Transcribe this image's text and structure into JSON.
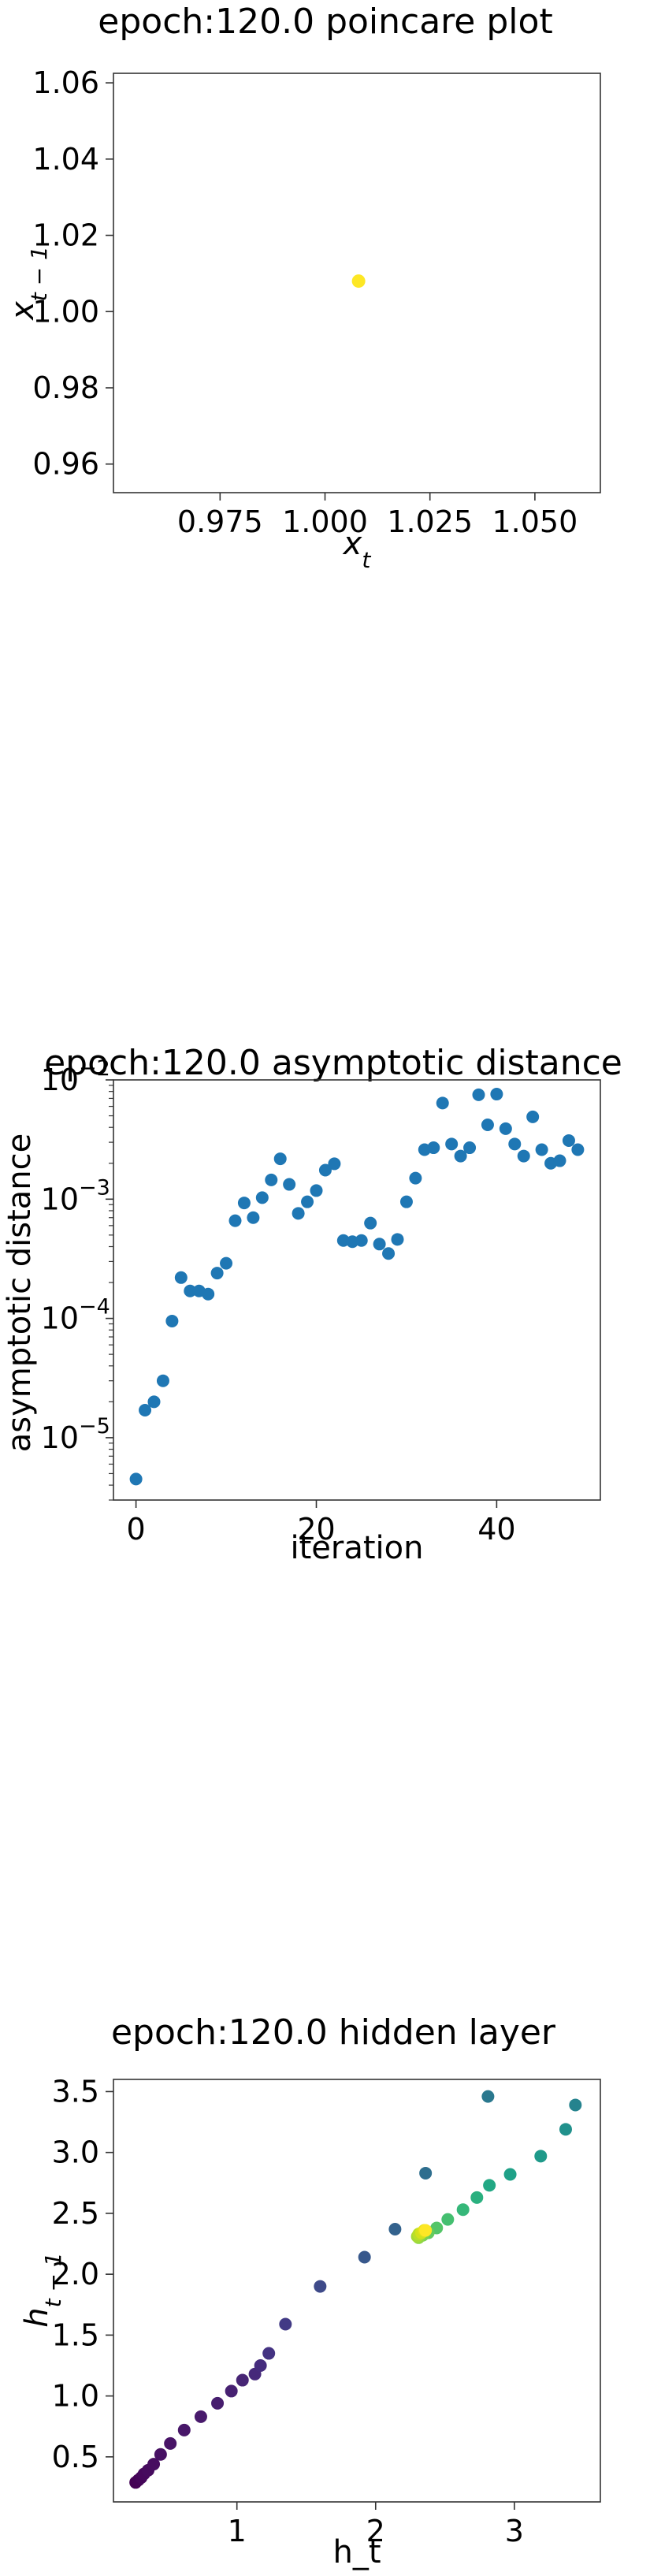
{
  "chart_data": [
    {
      "type": "scatter",
      "title": "epoch:120.0 poincare plot",
      "xlabel": "x_t",
      "ylabel": "x_{t-1}",
      "xlim": [
        0.9496,
        1.0656
      ],
      "ylim": [
        0.9525,
        1.0625
      ],
      "xticks": [
        0.975,
        1.0,
        1.025,
        1.05
      ],
      "xtick_labels": [
        "0.975",
        "1.000",
        "1.025",
        "1.050"
      ],
      "yticks": [
        0.96,
        0.98,
        1.0,
        1.02,
        1.04,
        1.06
      ],
      "ytick_labels": [
        "0.96",
        "0.98",
        "1.00",
        "1.02",
        "1.04",
        "1.06"
      ],
      "points": [
        {
          "x": 1.008,
          "y": 1.008
        }
      ],
      "point_color": "#fde725"
    },
    {
      "type": "scatter",
      "title": "epoch:120.0 asymptotic distance",
      "xlabel": "iteration",
      "ylabel": "asymptotic distance",
      "yscale": "log",
      "xlim": [
        -2.5,
        51.5
      ],
      "ylim": [
        3e-06,
        0.01
      ],
      "xticks": [
        0,
        20,
        40
      ],
      "xtick_labels": [
        "0",
        "20",
        "40"
      ],
      "yticks": [
        1e-05,
        0.0001,
        0.001,
        0.01
      ],
      "ytick_labels": [
        "10",
        "10",
        "10",
        "10"
      ],
      "ytick_exponents": [
        "−5",
        "−4",
        "−3",
        "−2"
      ],
      "point_color": "#1f77b4",
      "x": [
        0,
        1,
        2,
        3,
        4,
        5,
        6,
        7,
        8,
        9,
        10,
        11,
        12,
        13,
        14,
        15,
        16,
        17,
        18,
        19,
        20,
        21,
        22,
        23,
        24,
        25,
        26,
        27,
        28,
        29,
        30,
        31,
        32,
        33,
        34,
        35,
        36,
        37,
        38,
        39,
        40,
        41,
        42,
        43,
        44,
        45,
        46,
        47,
        48,
        49
      ],
      "y": [
        4.5e-06,
        1.7e-05,
        2e-05,
        3e-05,
        9.5e-05,
        0.00022,
        0.00017,
        0.00017,
        0.00016,
        0.00024,
        0.00029,
        0.00066,
        0.00093,
        0.0007,
        0.00103,
        0.00145,
        0.00218,
        0.00133,
        0.00076,
        0.00095,
        0.00118,
        0.00175,
        0.00198,
        0.00045,
        0.00044,
        0.00045,
        0.00063,
        0.00042,
        0.00035,
        0.00046,
        0.00095,
        0.0015,
        0.0026,
        0.0027,
        0.0064,
        0.0029,
        0.0023,
        0.0027,
        0.0075,
        0.0042,
        0.0076,
        0.0039,
        0.0029,
        0.0023,
        0.0049,
        0.0026,
        0.002,
        0.0021,
        0.0031,
        0.0026
      ]
    },
    {
      "type": "scatter",
      "title": "epoch:120.0 hidden layer",
      "xlabel": "h_t",
      "ylabel": "h_{t-1}",
      "xlim": [
        0.11,
        3.62
      ],
      "ylim": [
        0.13,
        3.6
      ],
      "xticks": [
        1,
        2,
        3
      ],
      "xtick_labels": [
        "1",
        "2",
        "3"
      ],
      "yticks": [
        0.5,
        1.0,
        1.5,
        2.0,
        2.5,
        3.0,
        3.5
      ],
      "ytick_labels": [
        "0.5",
        "1.0",
        "1.5",
        "2.0",
        "2.5",
        "3.0",
        "3.5"
      ],
      "points": [
        {
          "x": 0.27,
          "y": 0.29,
          "c": "#440154"
        },
        {
          "x": 0.29,
          "y": 0.31,
          "c": "#440256"
        },
        {
          "x": 0.31,
          "y": 0.33,
          "c": "#450559"
        },
        {
          "x": 0.33,
          "y": 0.36,
          "c": "#46085c"
        },
        {
          "x": 0.36,
          "y": 0.39,
          "c": "#460b5e"
        },
        {
          "x": 0.4,
          "y": 0.44,
          "c": "#470d60"
        },
        {
          "x": 0.45,
          "y": 0.52,
          "c": "#471063"
        },
        {
          "x": 0.52,
          "y": 0.61,
          "c": "#481467"
        },
        {
          "x": 0.62,
          "y": 0.72,
          "c": "#481769"
        },
        {
          "x": 0.74,
          "y": 0.83,
          "c": "#481a6c"
        },
        {
          "x": 0.86,
          "y": 0.94,
          "c": "#471d6e"
        },
        {
          "x": 0.96,
          "y": 1.04,
          "c": "#472172"
        },
        {
          "x": 1.04,
          "y": 1.13,
          "c": "#472575"
        },
        {
          "x": 1.13,
          "y": 1.18,
          "c": "#46297a"
        },
        {
          "x": 1.17,
          "y": 1.25,
          "c": "#452c7d"
        },
        {
          "x": 1.23,
          "y": 1.35,
          "c": "#443382"
        },
        {
          "x": 1.35,
          "y": 1.59,
          "c": "#423a85"
        },
        {
          "x": 1.6,
          "y": 1.9,
          "c": "#3e4a89"
        },
        {
          "x": 1.92,
          "y": 2.14,
          "c": "#38588c"
        },
        {
          "x": 2.14,
          "y": 2.37,
          "c": "#33628d"
        },
        {
          "x": 2.36,
          "y": 2.83,
          "c": "#2e6e8e"
        },
        {
          "x": 2.81,
          "y": 3.46,
          "c": "#2a788e"
        },
        {
          "x": 3.44,
          "y": 3.39,
          "c": "#25838e"
        },
        {
          "x": 3.37,
          "y": 3.19,
          "c": "#21918c"
        },
        {
          "x": 3.19,
          "y": 2.97,
          "c": "#1f9a8a"
        },
        {
          "x": 2.97,
          "y": 2.82,
          "c": "#1fa188"
        },
        {
          "x": 2.82,
          "y": 2.73,
          "c": "#22a884"
        },
        {
          "x": 2.73,
          "y": 2.63,
          "c": "#2ab07f"
        },
        {
          "x": 2.63,
          "y": 2.53,
          "c": "#35b779"
        },
        {
          "x": 2.52,
          "y": 2.45,
          "c": "#44bf70"
        },
        {
          "x": 2.44,
          "y": 2.38,
          "c": "#54c568"
        },
        {
          "x": 2.38,
          "y": 2.34,
          "c": "#65cb5e"
        },
        {
          "x": 2.34,
          "y": 2.32,
          "c": "#7ad151"
        },
        {
          "x": 2.31,
          "y": 2.3,
          "c": "#8fd744"
        },
        {
          "x": 2.3,
          "y": 2.31,
          "c": "#a5db36"
        },
        {
          "x": 2.31,
          "y": 2.33,
          "c": "#bade28"
        },
        {
          "x": 2.33,
          "y": 2.34,
          "c": "#d2e21b"
        },
        {
          "x": 2.35,
          "y": 2.36,
          "c": "#e5e419"
        },
        {
          "x": 2.36,
          "y": 2.36,
          "c": "#fde725"
        }
      ]
    }
  ]
}
